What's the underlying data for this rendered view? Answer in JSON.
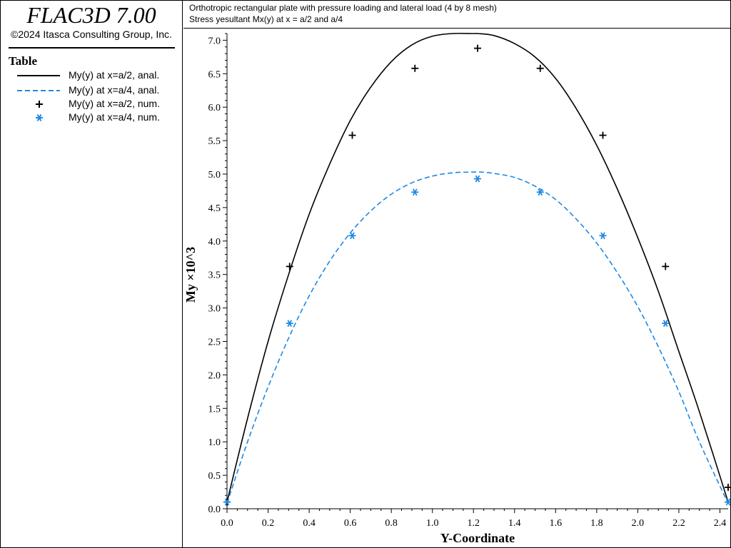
{
  "app": {
    "title": "FLAC3D 7.00",
    "copyright": "©2024 Itasca Consulting Group, Inc."
  },
  "legend": {
    "heading": "Table",
    "items": [
      {
        "label": "My(y) at x=a/2, anal.",
        "style": "solid-line",
        "color": "#000000"
      },
      {
        "label": "My(y) at x=a/4, anal.",
        "style": "dashed-line",
        "color": "#1e88e5"
      },
      {
        "label": "My(y) at x=a/2, num.",
        "style": "plus-marker",
        "color": "#000000"
      },
      {
        "label": "My(y) at x=a/4, num.",
        "style": "star-marker",
        "color": "#1e88e5"
      }
    ]
  },
  "chart_data": {
    "type": "line",
    "title": "Orthotropic rectangular plate with pressure loading and lateral load (4 by 8 mesh)",
    "subtitle": "Stress yesultant Mx(y) at x = a/2 and a/4",
    "xlabel": "Y-Coordinate",
    "ylabel": "My ×10^3",
    "xlim": [
      0.0,
      2.44
    ],
    "ylim": [
      0.0,
      7.1
    ],
    "xticks": [
      "0.0",
      "0.2",
      "0.4",
      "0.6",
      "0.8",
      "1.0",
      "1.2",
      "1.4",
      "1.6",
      "1.8",
      "2.0",
      "2.2",
      "2.4"
    ],
    "yticks": [
      "0.0",
      "0.5",
      "1.0",
      "1.5",
      "2.0",
      "2.5",
      "3.0",
      "3.5",
      "4.0",
      "4.5",
      "5.0",
      "5.5",
      "6.0",
      "6.5",
      "7.0"
    ],
    "grid": false,
    "series": [
      {
        "name": "My(y) at x=a/2, anal.",
        "style": "solid",
        "color": "#000000",
        "x": [
          0.0,
          0.1,
          0.2,
          0.3,
          0.4,
          0.5,
          0.6,
          0.7,
          0.8,
          0.9,
          1.0,
          1.1,
          1.2,
          1.22,
          1.3,
          1.4,
          1.5,
          1.6,
          1.7,
          1.8,
          1.9,
          2.0,
          2.1,
          2.2,
          2.3,
          2.44
        ],
        "y": [
          0.1,
          1.35,
          2.5,
          3.5,
          4.4,
          5.15,
          5.8,
          6.3,
          6.68,
          6.93,
          7.06,
          7.1,
          7.1,
          7.1,
          7.07,
          6.95,
          6.75,
          6.43,
          5.98,
          5.43,
          4.78,
          4.05,
          3.25,
          2.35,
          1.45,
          0.1
        ]
      },
      {
        "name": "My(y) at x=a/4, anal.",
        "style": "dashed",
        "color": "#1e88e5",
        "x": [
          0.0,
          0.1,
          0.2,
          0.3,
          0.4,
          0.5,
          0.6,
          0.7,
          0.8,
          0.9,
          1.0,
          1.1,
          1.2,
          1.24,
          1.3,
          1.4,
          1.5,
          1.6,
          1.7,
          1.8,
          1.9,
          2.0,
          2.1,
          2.2,
          2.3,
          2.44
        ],
        "y": [
          0.08,
          1.0,
          1.82,
          2.55,
          3.18,
          3.7,
          4.12,
          4.45,
          4.7,
          4.87,
          4.97,
          5.02,
          5.03,
          5.03,
          5.01,
          4.95,
          4.82,
          4.62,
          4.33,
          3.97,
          3.53,
          3.02,
          2.42,
          1.75,
          1.0,
          0.08
        ]
      },
      {
        "name": "My(y) at x=a/2, num.",
        "style": "plus",
        "color": "#000000",
        "x": [
          0.0,
          0.305,
          0.61,
          0.915,
          1.22,
          1.525,
          1.83,
          2.135,
          2.44
        ],
        "y": [
          0.1,
          3.62,
          5.58,
          6.58,
          6.88,
          6.58,
          5.58,
          3.62,
          0.32
        ]
      },
      {
        "name": "My(y) at x=a/4, num.",
        "style": "star",
        "color": "#1e88e5",
        "x": [
          0.0,
          0.305,
          0.61,
          0.915,
          1.22,
          1.525,
          1.83,
          2.135,
          2.44
        ],
        "y": [
          0.1,
          2.77,
          4.08,
          4.73,
          4.93,
          4.73,
          4.08,
          2.77,
          0.1
        ]
      }
    ]
  }
}
